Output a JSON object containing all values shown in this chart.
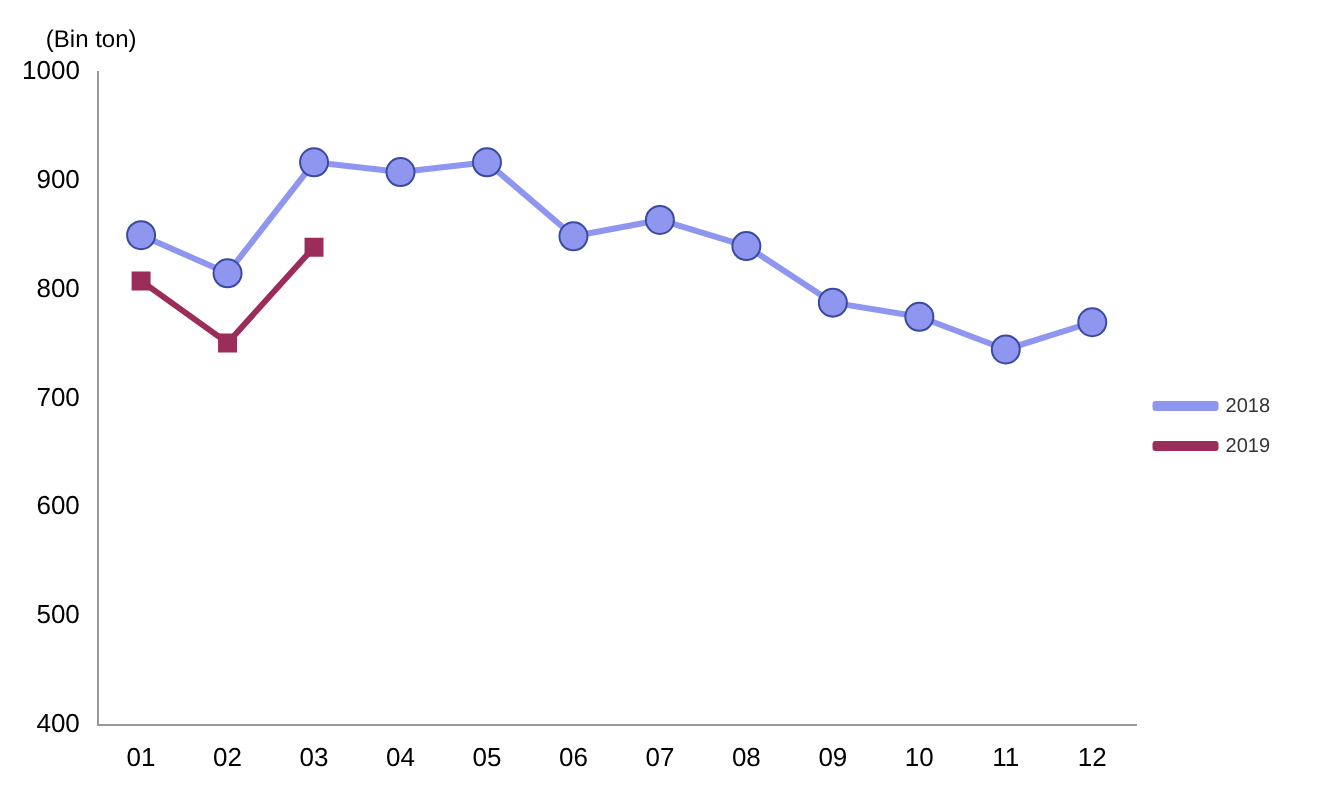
{
  "chart_data": {
    "type": "line",
    "ylabel": "(Bin ton)",
    "categories": [
      "01",
      "02",
      "03",
      "04",
      "05",
      "06",
      "07",
      "08",
      "09",
      "10",
      "11",
      "12"
    ],
    "series": [
      {
        "name": "2018",
        "color": "#8f96f0",
        "marker": "circle",
        "values": [
          850,
          815,
          917,
          908,
          917,
          849,
          864,
          840,
          788,
          775,
          745,
          770
        ]
      },
      {
        "name": "2019",
        "color": "#9b2d5a",
        "marker": "square",
        "values": [
          808,
          751,
          839,
          null,
          null,
          null,
          null,
          null,
          null,
          null,
          null,
          null
        ]
      }
    ],
    "ylim": [
      400,
      1000
    ],
    "yticks": [
      400,
      500,
      600,
      700,
      800,
      900,
      1000
    ],
    "grid": false,
    "legend": "right",
    "line_style": "solid"
  }
}
